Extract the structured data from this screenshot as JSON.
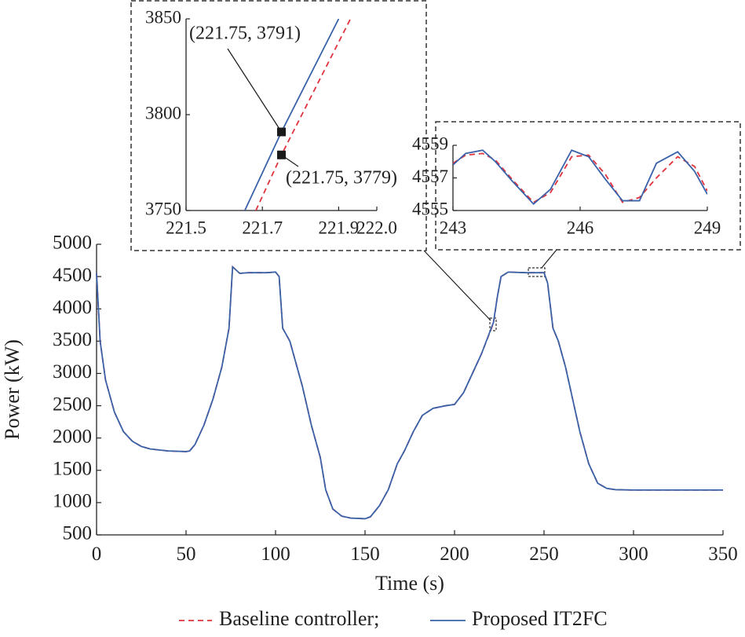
{
  "chart_data": [
    {
      "type": "line",
      "xlabel": "Time (s)",
      "ylabel": "Power (kW)",
      "xlim": [
        0,
        350
      ],
      "ylim": [
        500,
        5000
      ],
      "xticks": [
        0,
        50,
        100,
        150,
        200,
        250,
        300,
        350
      ],
      "yticks": [
        500,
        1000,
        1500,
        2000,
        2500,
        3000,
        3500,
        4000,
        4500,
        5000
      ],
      "grid": false,
      "legend": "bottom",
      "x": [
        0,
        2,
        5,
        10,
        15,
        20,
        25,
        30,
        40,
        50,
        52,
        55,
        60,
        65,
        70,
        74,
        76,
        78,
        80,
        85,
        90,
        95,
        100,
        102,
        104,
        108,
        115,
        120,
        125,
        128,
        132,
        137,
        142,
        150,
        153,
        158,
        163,
        168,
        172,
        177,
        182,
        188,
        195,
        200,
        205,
        210,
        215,
        221.75,
        224,
        226,
        230,
        240,
        250,
        252,
        255,
        258,
        262,
        266,
        270,
        275,
        280,
        285,
        290,
        300,
        350
      ],
      "series": [
        {
          "name": "Baseline controller;",
          "color": "#e0333d",
          "style": "dashed",
          "values": [
            4550,
            3500,
            2900,
            2400,
            2100,
            1950,
            1870,
            1830,
            1800,
            1790,
            1800,
            1900,
            2200,
            2600,
            3100,
            3700,
            4650,
            4600,
            4550,
            4560,
            4560,
            4560,
            4570,
            4500,
            3700,
            3500,
            2800,
            2200,
            1700,
            1200,
            900,
            790,
            760,
            750,
            780,
            950,
            1200,
            1600,
            1800,
            2100,
            2350,
            2460,
            2500,
            2520,
            2700,
            3000,
            3300,
            3779,
            4200,
            4500,
            4570,
            4560,
            4560,
            4400,
            3700,
            3500,
            3100,
            2600,
            2100,
            1600,
            1300,
            1220,
            1200,
            1195,
            1195
          ]
        },
        {
          "name": "Proposed IT2FC",
          "color": "#3a62a8",
          "style": "solid",
          "values": [
            4550,
            3500,
            2900,
            2400,
            2100,
            1950,
            1870,
            1830,
            1800,
            1790,
            1800,
            1900,
            2200,
            2600,
            3100,
            3700,
            4650,
            4600,
            4550,
            4560,
            4560,
            4560,
            4570,
            4500,
            3700,
            3500,
            2800,
            2200,
            1700,
            1200,
            900,
            790,
            760,
            750,
            780,
            950,
            1200,
            1600,
            1800,
            2100,
            2350,
            2460,
            2500,
            2520,
            2700,
            3000,
            3300,
            3791,
            4200,
            4500,
            4570,
            4560,
            4560,
            4400,
            3700,
            3500,
            3100,
            2600,
            2100,
            1600,
            1300,
            1220,
            1200,
            1195,
            1195
          ]
        }
      ]
    },
    {
      "type": "line",
      "xlim": [
        221.5,
        222
      ],
      "ylim": [
        3750,
        3850
      ],
      "xticks": [
        221.5,
        221.7,
        221.9,
        {
          "value": 222,
          "label": "222.0"
        }
      ],
      "yticks": [
        3750,
        3800,
        3850
      ],
      "series": [
        {
          "color": "#e0333d",
          "style": "dashed",
          "x": [
            221.683,
            221.75,
            221.931
          ],
          "values": [
            3750,
            3779,
            3850
          ]
        },
        {
          "color": "#3a62a8",
          "style": "solid",
          "x": [
            221.654,
            221.75,
            221.9
          ],
          "values": [
            3750,
            3791,
            3850
          ]
        }
      ],
      "annotations": [
        {
          "text": "(221.75, 3791)",
          "x": 221.75,
          "y": 3791
        },
        {
          "text": "(221.75, 3779)",
          "x": 221.75,
          "y": 3779
        }
      ]
    },
    {
      "type": "line",
      "xlim": [
        243,
        249
      ],
      "ylim": [
        4555,
        4559
      ],
      "xticks": [
        243,
        246,
        249
      ],
      "yticks": [
        4555,
        4557,
        4559
      ],
      "x": [
        243,
        243.3,
        243.7,
        244,
        244.4,
        244.9,
        245.3,
        245.8,
        246.2,
        246.6,
        247,
        247.4,
        247.8,
        248.3,
        248.7,
        249
      ],
      "series": [
        {
          "color": "#e0333d",
          "style": "dashed",
          "values": [
            4557.9,
            4558.4,
            4558.5,
            4558.1,
            4556.9,
            4555.5,
            4556.1,
            4558.3,
            4558.4,
            4557.2,
            4555.5,
            4555.8,
            4557.0,
            4558.3,
            4557.7,
            4556.2
          ]
        },
        {
          "color": "#3a62a8",
          "style": "solid",
          "values": [
            4557.8,
            4558.5,
            4558.7,
            4558.0,
            4556.8,
            4555.4,
            4556.3,
            4558.7,
            4558.3,
            4556.9,
            4555.6,
            4555.6,
            4557.9,
            4558.6,
            4557.4,
            4556.0
          ]
        }
      ]
    }
  ]
}
